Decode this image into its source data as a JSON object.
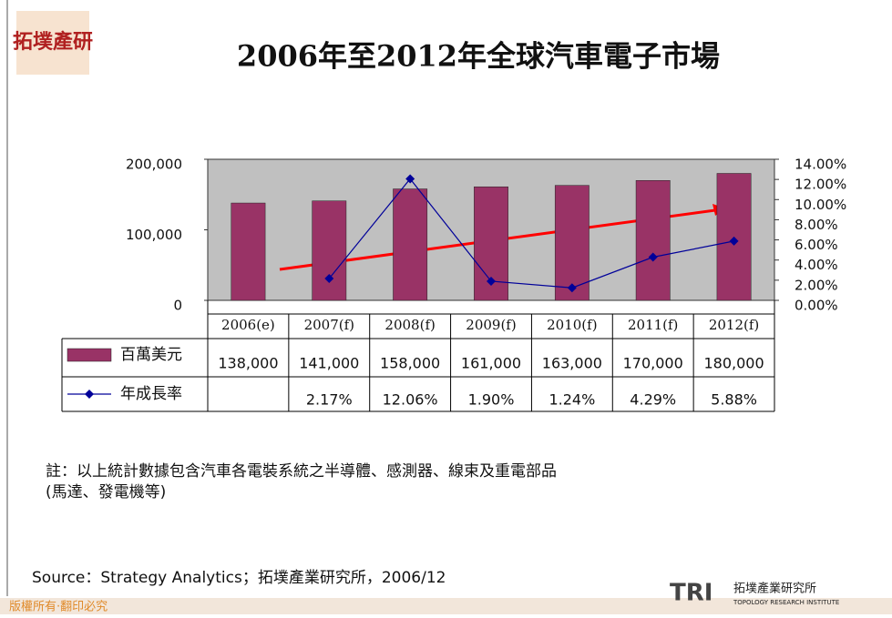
{
  "logo": {
    "text": "拓墣產研"
  },
  "chart_data": {
    "type": "bar-line",
    "title": "2006年至2012年全球汽車電子市場",
    "categories": [
      "2006(e)",
      "2007(f)",
      "2008(f)",
      "2009(f)",
      "2010(f)",
      "2011(f)",
      "2012(f)"
    ],
    "series": [
      {
        "name": "百萬美元",
        "type": "bar",
        "color": "#993366",
        "values": [
          138000,
          141000,
          158000,
          161000,
          163000,
          170000,
          180000
        ],
        "value_labels": [
          "138,000",
          "141,000",
          "158,000",
          "161,000",
          "163,000",
          "170,000",
          "180,000"
        ]
      },
      {
        "name": "年成長率",
        "type": "line",
        "axis": "y2",
        "color": "#000099",
        "values": [
          null,
          2.17,
          12.06,
          1.9,
          1.24,
          4.29,
          5.88
        ],
        "value_labels": [
          null,
          "2.17%",
          "12.06%",
          "1.90%",
          "1.24%",
          "4.29%",
          "5.88%"
        ]
      }
    ],
    "ylim": [
      0,
      200000
    ],
    "yticks": [
      0,
      {
        "value": 100000,
        "label": "100,000"
      },
      {
        "value": 200000,
        "label": "200,000"
      }
    ],
    "y2lim": [
      0,
      14
    ],
    "y2ticks": [
      {
        "value": 0,
        "label": "0.00%"
      },
      {
        "value": 2,
        "label": "2.00%"
      },
      {
        "value": 4,
        "label": "4.00%"
      },
      {
        "value": 6,
        "label": "6.00%"
      },
      {
        "value": 8,
        "label": "8.00%"
      },
      {
        "value": 10,
        "label": "10.00%"
      },
      {
        "value": 12,
        "label": "12.00%"
      },
      {
        "value": 14,
        "label": "14.00%"
      }
    ],
    "note": "註：以上統計數據包含汽車各電裝系統之半導體、感測器、線束及重電部品",
    "note2": "(馬達、發電機等)",
    "source": "Source：Strategy Analytics；拓墣產業研究所，2006/12"
  },
  "footer": {
    "copyright": "版權所有‧翻印必究",
    "brand": "TRI",
    "brand_cn": "拓墣產業研究所",
    "brand_en": "TOPOLOGY RESEARCH INSTITUTE"
  }
}
